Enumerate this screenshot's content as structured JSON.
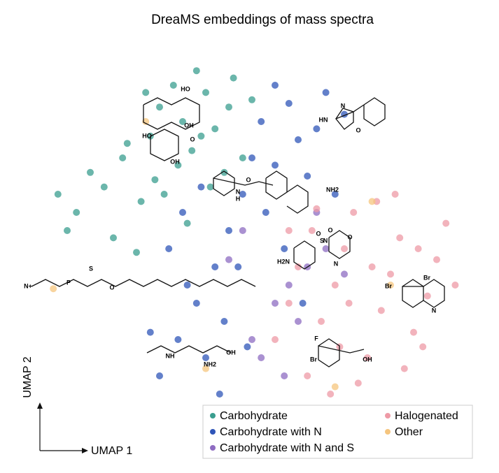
{
  "chart_data": {
    "type": "scatter",
    "title": "DreaMS embeddings of mass spectra",
    "xlabel": "UMAP 1",
    "ylabel": "UMAP 2",
    "xlim": [
      0,
      100
    ],
    "ylim": [
      0,
      100
    ],
    "legend": "lower right",
    "series": [
      {
        "name": "Carbohydrate",
        "color": "#3a9e8f",
        "x": [
          12,
          18,
          22,
          26,
          28,
          30,
          33,
          35,
          37,
          40,
          42,
          44,
          46,
          48,
          20,
          25,
          31,
          36,
          41,
          15,
          10,
          8,
          45,
          38,
          27,
          34,
          50,
          23,
          29,
          39
        ],
        "y": [
          55,
          62,
          70,
          58,
          76,
          84,
          90,
          80,
          72,
          88,
          78,
          66,
          92,
          70,
          48,
          44,
          60,
          52,
          62,
          66,
          50,
          60,
          84,
          94,
          88,
          68,
          86,
          74,
          64,
          76
        ]
      },
      {
        "name": "Carbohydrate with N",
        "color": "#2f55b8",
        "x": [
          30,
          34,
          38,
          42,
          45,
          48,
          50,
          52,
          55,
          58,
          60,
          62,
          64,
          66,
          68,
          40,
          44,
          36,
          32,
          28,
          47,
          53,
          57,
          61,
          43,
          49,
          39,
          35,
          55,
          70
        ],
        "y": [
          10,
          20,
          30,
          40,
          50,
          60,
          70,
          80,
          90,
          85,
          75,
          65,
          78,
          88,
          60,
          15,
          25,
          35,
          45,
          22,
          40,
          55,
          45,
          30,
          5,
          18,
          62,
          55,
          68,
          82
        ]
      },
      {
        "name": "Carbohydrate with N and S",
        "color": "#8e6cc2",
        "x": [
          50,
          55,
          58,
          62,
          66,
          48,
          52,
          60,
          64,
          70,
          45,
          57
        ],
        "y": [
          20,
          30,
          35,
          40,
          45,
          50,
          15,
          25,
          55,
          38,
          42,
          10
        ]
      },
      {
        "name": "Halogenated",
        "color": "#ee9aa6",
        "x": [
          55,
          58,
          60,
          63,
          65,
          68,
          70,
          72,
          75,
          78,
          80,
          82,
          85,
          88,
          90,
          92,
          62,
          67,
          73,
          77,
          83,
          87,
          94,
          71,
          76,
          81,
          58,
          64,
          69,
          86
        ],
        "y": [
          20,
          30,
          40,
          50,
          25,
          35,
          45,
          55,
          15,
          28,
          38,
          48,
          22,
          32,
          42,
          52,
          10,
          5,
          8,
          58,
          12,
          18,
          35,
          30,
          40,
          60,
          50,
          56,
          18,
          45
        ]
      },
      {
        "name": "Other",
        "color": "#f5c57e",
        "x": [
          27,
          7,
          68,
          80,
          40,
          76
        ],
        "y": [
          80,
          34,
          7,
          35,
          12,
          58
        ]
      }
    ],
    "annotations": [
      "HO",
      "HO",
      "OH",
      "OH",
      "O",
      "HN",
      "N",
      "O",
      "O",
      "N",
      "H",
      "NH2",
      "O",
      "S",
      "O",
      "H2N",
      "N",
      "N",
      "O",
      "N+",
      "P",
      "S",
      "O",
      "Br",
      "Br",
      "N",
      "NH",
      "OH",
      "NH2",
      "F",
      "Br",
      "OH"
    ]
  }
}
